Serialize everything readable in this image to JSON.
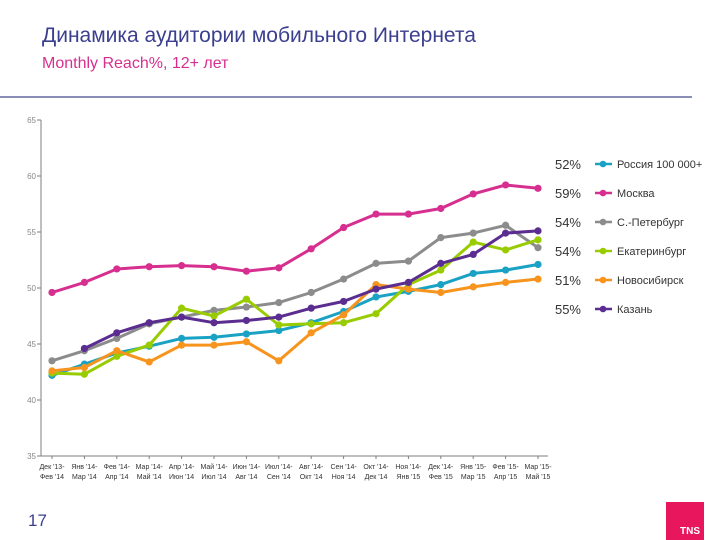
{
  "header": {
    "title": "Динамика аудитории мобильного Интернета",
    "subtitle": "Monthly Reach%, 12+ лет"
  },
  "footer": {
    "page_number": "17",
    "logo_text": "TNS"
  },
  "colors": {
    "title": "#3b3f8f",
    "subtitle": "#d62f8f",
    "logo": "#e8175d",
    "rossiya": "#1aa2c4",
    "moskva": "#d62f8f",
    "spb": "#8c8c8c",
    "ekb": "#99cc00",
    "nsk": "#f7941d",
    "kazan": "#5b2d91"
  },
  "chart_data": {
    "type": "line",
    "title": "Monthly Reach%, 12+ лет",
    "xlabel": "",
    "ylabel": "",
    "ylim": [
      35,
      65
    ],
    "yticks": [
      "35",
      "40",
      "45",
      "50",
      "55",
      "60",
      "65"
    ],
    "grid": false,
    "legend_position": "right",
    "categories": [
      "Дек '13- Фев '14",
      "Янв '14- Мар '14",
      "Фев '14- Апр '14",
      "Мар '14- Май '14",
      "Апр '14- Июн '14",
      "Май '14- Июл '14",
      "Июн '14- Авг '14",
      "Июл '14- Сен '14",
      "Авг '14- Окт '14",
      "Сен '14- Ноя '14",
      "Окт '14- Дек '14",
      "Ноя '14- Янв '15",
      "Дек '14- Фев '15",
      "Янв '15- Мар '15",
      "Фев '15- Апр '15",
      "Мар '15- Май '15"
    ],
    "series": [
      {
        "name": "Россия 100 000+",
        "color": "#1aa2c4",
        "end_label": "52%",
        "values": [
          42.2,
          43.2,
          44.2,
          44.8,
          45.5,
          45.6,
          45.9,
          46.2,
          46.9,
          47.9,
          49.2,
          49.7,
          50.3,
          51.3,
          51.6,
          52.1
        ]
      },
      {
        "name": "Москва",
        "color": "#d62f8f",
        "end_label": "59%",
        "values": [
          49.6,
          50.5,
          51.7,
          51.9,
          52.0,
          51.9,
          51.5,
          51.8,
          53.5,
          55.4,
          56.6,
          56.6,
          57.1,
          58.4,
          59.2,
          58.9
        ]
      },
      {
        "name": "С.-Петербург",
        "color": "#8c8c8c",
        "end_label": "54%",
        "values": [
          43.5,
          44.4,
          45.5,
          46.8,
          47.4,
          48.0,
          48.3,
          48.7,
          49.6,
          50.8,
          52.2,
          52.4,
          54.5,
          54.9,
          55.6,
          53.6
        ]
      },
      {
        "name": "Екатеринбург",
        "color": "#99cc00",
        "end_label": "54%",
        "values": [
          42.4,
          42.3,
          43.9,
          44.9,
          48.2,
          47.5,
          49.0,
          46.7,
          46.8,
          46.9,
          47.7,
          50.3,
          51.6,
          54.1,
          53.4,
          54.3
        ]
      },
      {
        "name": "Новосибирск",
        "color": "#f7941d",
        "end_label": "51%",
        "values": [
          42.6,
          42.9,
          44.4,
          43.4,
          44.9,
          44.9,
          45.2,
          43.5,
          46.0,
          47.6,
          50.3,
          49.9,
          49.6,
          50.1,
          50.5,
          50.8
        ]
      },
      {
        "name": "Казань",
        "color": "#5b2d91",
        "end_label": "55%",
        "values": [
          null,
          44.6,
          46.0,
          46.9,
          47.4,
          46.9,
          47.1,
          47.4,
          48.2,
          48.8,
          49.9,
          50.5,
          52.2,
          53.0,
          54.9,
          55.1
        ]
      }
    ]
  }
}
